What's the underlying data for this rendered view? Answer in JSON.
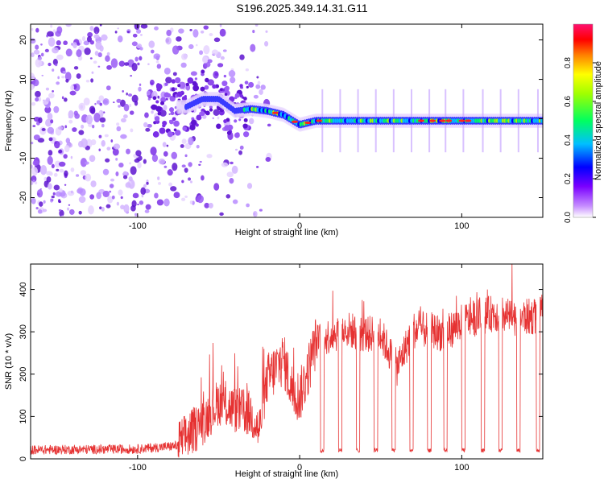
{
  "title": "S196.2025.349.14.31.G11",
  "colors": {
    "snr_line": "#e63232",
    "scatter": "#6a1bd6",
    "frame": "#000000"
  },
  "chart_data": [
    {
      "type": "heatmap",
      "title": "S196.2025.349.14.31.G11",
      "xlabel": "Height of straight line (km)",
      "ylabel": "Frequency (Hz)",
      "xlim": [
        -166,
        150
      ],
      "ylim": [
        -25,
        24
      ],
      "x_ticks": [
        -100,
        0,
        100
      ],
      "y_ticks": [
        -20,
        -10,
        0,
        10,
        20
      ],
      "x_tick_labels": [
        "-100",
        "0",
        "100"
      ],
      "y_tick_labels": [
        "-20",
        "-10",
        "0",
        "10",
        "20"
      ],
      "colorbar": {
        "label": "Normalized spectral amplitude",
        "range": [
          0.0,
          1.0
        ],
        "ticks": [
          0.0,
          0.2,
          0.4,
          0.6,
          0.8
        ],
        "tick_labels": [
          "0.0",
          "0.2",
          "0.4",
          "0.6",
          "0.8"
        ],
        "colormap": [
          "#f3e6ff",
          "#7a00ff",
          "#0000ff",
          "#00ffff",
          "#00ff00",
          "#ffff00",
          "#ff8000",
          "#ff0000",
          "#ff0080"
        ]
      },
      "ridge_frequency": {
        "x": [
          -70,
          -60,
          -50,
          -40,
          -30,
          -20,
          -10,
          0,
          10,
          20,
          40,
          60,
          80,
          100,
          120,
          150
        ],
        "y": [
          3,
          5,
          5,
          2,
          2.5,
          2,
          1,
          -1.5,
          -0.5,
          -0.5,
          -0.5,
          -0.5,
          -0.5,
          -0.5,
          -0.5,
          -0.5
        ]
      }
    },
    {
      "type": "line",
      "xlabel": "Height of straight line (km)",
      "ylabel": "SNR (10 * v/v)",
      "xlim": [
        -166,
        150
      ],
      "ylim": [
        0,
        460
      ],
      "x_ticks": [
        -100,
        0,
        100
      ],
      "y_ticks": [
        0,
        100,
        200,
        300,
        400
      ],
      "x_tick_labels": [
        "-100",
        "0",
        "100"
      ],
      "y_tick_labels": [
        "0",
        "100",
        "200",
        "300",
        "400"
      ],
      "envelope": {
        "x": [
          -166,
          -100,
          -75,
          -60,
          -50,
          -40,
          -30,
          -25,
          -20,
          -10,
          -5,
          0,
          5,
          10,
          20,
          30,
          40,
          50,
          60,
          70,
          80,
          90,
          100,
          110,
          120,
          130,
          140,
          150
        ],
        "y": [
          20,
          22,
          30,
          80,
          130,
          110,
          100,
          60,
          180,
          230,
          160,
          140,
          200,
          270,
          290,
          300,
          290,
          290,
          210,
          300,
          300,
          290,
          320,
          330,
          340,
          330,
          330,
          335
        ]
      },
      "dropouts_x": [
        14,
        25,
        36,
        47,
        58,
        69,
        80,
        90,
        101,
        113,
        124,
        135,
        147
      ],
      "dropout_value": 15
    }
  ]
}
